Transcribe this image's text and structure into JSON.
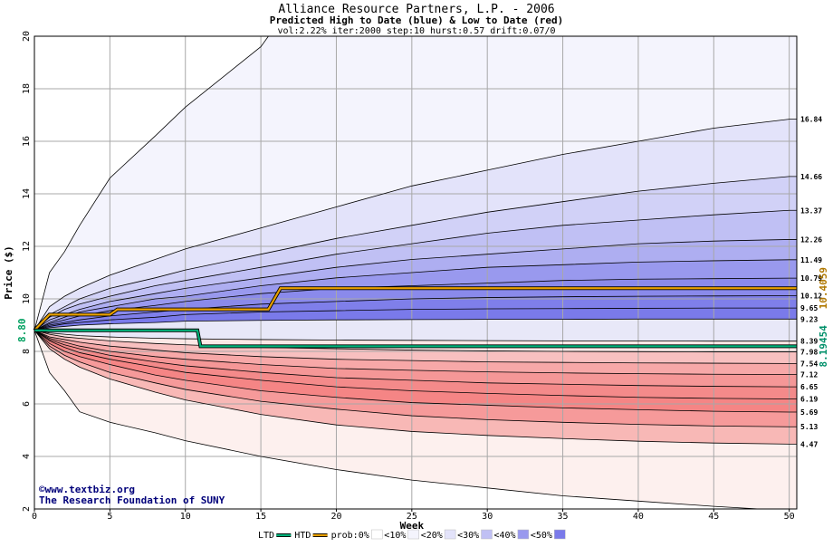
{
  "title": "Alliance Resource Partners, L.P. - 2006",
  "subtitle": "Predicted High to Date (blue) &  Low to Date (red)",
  "params": "vol:2.22% iter:2000 step:10 hurst:0.57 drift:0.07/0",
  "credit_url": "www.textbiz.org",
  "credit_org": "The Research Foundation of SUNY",
  "copyright_symbol": "©",
  "chart_data": {
    "type": "area",
    "xlabel": "Week",
    "ylabel": "Price ($)",
    "xlim": [
      0,
      50.5
    ],
    "ylim": [
      2,
      20
    ],
    "xticks": [
      0,
      5,
      10,
      15,
      20,
      25,
      30,
      35,
      40,
      45,
      50
    ],
    "yticks": [
      2,
      4,
      6,
      8,
      10,
      12,
      14,
      16,
      18,
      20
    ],
    "grid": true,
    "start_price": 8.8,
    "start_label": "8.80",
    "x": [
      0,
      1,
      2,
      3,
      5,
      8,
      10,
      15,
      20,
      25,
      30,
      35,
      40,
      45,
      50
    ],
    "upper_curves": [
      {
        "label": "16.84",
        "values": [
          8.8,
          9.7,
          10.1,
          10.4,
          10.9,
          11.5,
          11.9,
          12.7,
          13.5,
          14.3,
          14.9,
          15.5,
          16.0,
          16.5,
          16.84
        ]
      },
      {
        "label": "14.66",
        "values": [
          8.8,
          9.4,
          9.7,
          10.0,
          10.4,
          10.8,
          11.1,
          11.7,
          12.3,
          12.8,
          13.3,
          13.7,
          14.1,
          14.4,
          14.66
        ]
      },
      {
        "label": "13.37",
        "values": [
          8.8,
          9.3,
          9.6,
          9.8,
          10.1,
          10.5,
          10.7,
          11.2,
          11.7,
          12.1,
          12.5,
          12.8,
          13.0,
          13.2,
          13.37
        ]
      },
      {
        "label": "12.26",
        "values": [
          8.8,
          9.2,
          9.4,
          9.6,
          9.9,
          10.2,
          10.4,
          10.8,
          11.2,
          11.5,
          11.7,
          11.9,
          12.1,
          12.2,
          12.26
        ]
      },
      {
        "label": "11.49",
        "values": [
          8.8,
          9.1,
          9.3,
          9.5,
          9.7,
          10.0,
          10.1,
          10.5,
          10.8,
          11.0,
          11.2,
          11.3,
          11.4,
          11.45,
          11.49
        ]
      },
      {
        "label": "10.79",
        "values": [
          8.8,
          9.05,
          9.2,
          9.35,
          9.55,
          9.75,
          9.9,
          10.2,
          10.4,
          10.5,
          10.6,
          10.7,
          10.75,
          10.77,
          10.79
        ]
      },
      {
        "label": "10.12",
        "values": [
          8.8,
          9.0,
          9.1,
          9.2,
          9.35,
          9.5,
          9.6,
          9.8,
          9.9,
          10.0,
          10.05,
          10.08,
          10.1,
          10.11,
          10.12
        ]
      },
      {
        "label": "9.65",
        "values": [
          8.8,
          8.95,
          9.05,
          9.1,
          9.2,
          9.3,
          9.4,
          9.5,
          9.55,
          9.6,
          9.62,
          9.63,
          9.64,
          9.65,
          9.65
        ]
      },
      {
        "label": "9.23",
        "values": [
          8.8,
          8.9,
          8.95,
          9.0,
          9.05,
          9.1,
          9.15,
          9.18,
          9.2,
          9.21,
          9.22,
          9.22,
          9.23,
          9.23,
          9.23
        ]
      }
    ],
    "lower_curves": [
      {
        "label": "8.39",
        "values": [
          8.8,
          8.7,
          8.65,
          8.6,
          8.55,
          8.5,
          8.48,
          8.45,
          8.43,
          8.42,
          8.41,
          8.4,
          8.4,
          8.39,
          8.39
        ]
      },
      {
        "label": "7.98",
        "values": [
          8.8,
          8.65,
          8.55,
          8.5,
          8.4,
          8.3,
          8.25,
          8.15,
          8.1,
          8.05,
          8.02,
          8.0,
          7.99,
          7.98,
          7.98
        ]
      },
      {
        "label": "7.54",
        "values": [
          8.8,
          8.55,
          8.45,
          8.35,
          8.2,
          8.05,
          7.95,
          7.8,
          7.7,
          7.65,
          7.6,
          7.58,
          7.56,
          7.55,
          7.54
        ]
      },
      {
        "label": "7.12",
        "values": [
          8.8,
          8.5,
          8.35,
          8.2,
          8.0,
          7.8,
          7.7,
          7.5,
          7.35,
          7.28,
          7.22,
          7.18,
          7.15,
          7.13,
          7.12
        ]
      },
      {
        "label": "6.65",
        "values": [
          8.8,
          8.45,
          8.25,
          8.1,
          7.85,
          7.6,
          7.45,
          7.2,
          7.0,
          6.9,
          6.8,
          6.75,
          6.7,
          6.67,
          6.65
        ]
      },
      {
        "label": "6.19",
        "values": [
          8.8,
          8.4,
          8.15,
          7.95,
          7.7,
          7.4,
          7.2,
          6.9,
          6.65,
          6.5,
          6.4,
          6.32,
          6.25,
          6.21,
          6.19
        ]
      },
      {
        "label": "5.69",
        "values": [
          8.8,
          8.3,
          8.0,
          7.8,
          7.5,
          7.1,
          6.9,
          6.5,
          6.25,
          6.05,
          5.95,
          5.85,
          5.78,
          5.72,
          5.69
        ]
      },
      {
        "label": "5.13",
        "values": [
          8.8,
          8.2,
          7.85,
          7.6,
          7.2,
          6.8,
          6.55,
          6.1,
          5.8,
          5.55,
          5.4,
          5.3,
          5.22,
          5.16,
          5.13
        ]
      },
      {
        "label": "4.47",
        "values": [
          8.8,
          8.1,
          7.7,
          7.4,
          6.95,
          6.45,
          6.15,
          5.6,
          5.2,
          4.95,
          4.8,
          4.68,
          4.58,
          4.51,
          4.47
        ]
      }
    ],
    "outer_upper": {
      "x": [
        0,
        1,
        2,
        3,
        5,
        8,
        10,
        15,
        15.5,
        20,
        50.5
      ],
      "values": [
        8.8,
        11.0,
        11.8,
        12.8,
        14.6,
        16.2,
        17.3,
        19.6,
        20,
        20,
        20
      ]
    },
    "outer_lower": {
      "x": [
        0,
        1,
        2,
        3,
        5,
        8,
        10,
        15,
        20,
        25,
        30,
        35,
        40,
        45,
        48,
        50.5
      ],
      "values": [
        8.8,
        7.2,
        6.5,
        5.7,
        5.3,
        4.9,
        4.6,
        4.0,
        3.5,
        3.1,
        2.8,
        2.5,
        2.3,
        2.1,
        2.0,
        2.0
      ]
    },
    "htd_line": {
      "name": "HTD",
      "color": "#e8a000",
      "x": [
        0,
        1,
        5,
        5.5,
        15.5,
        16.3,
        50.5
      ],
      "values": [
        8.8,
        9.4,
        9.4,
        9.6,
        9.6,
        10.4059,
        10.4059
      ],
      "end_label": "10.4059"
    },
    "ltd_line": {
      "name": "LTD",
      "color": "#00b27a",
      "x": [
        0,
        10.8,
        11,
        50.5
      ],
      "values": [
        8.8,
        8.8,
        8.19454,
        8.19454
      ],
      "end_label": "8.19454"
    },
    "colors": {
      "outer": [
        "#f4f4fd",
        "#fdf0ee"
      ],
      "upper_bands": [
        "#e3e3fa",
        "#d1d1f7",
        "#c0c0f4",
        "#aeaef1",
        "#9999ee",
        "#8a8aeb",
        "#7f7fea",
        "#7a7aea",
        "#e8e8f8"
      ],
      "lower_bands": [
        "#fce8e6",
        "#f8c0c0",
        "#f7a8a8",
        "#f59797",
        "#f48a8a",
        "#f58585",
        "#f69a9a",
        "#f8b8b6",
        "#fcd8d6"
      ]
    },
    "legend": [
      {
        "label": "LTD",
        "kind": "line",
        "color": "#00b27a"
      },
      {
        "label": "HTD",
        "kind": "line",
        "color": "#e8a000"
      },
      {
        "label": "prob:0%",
        "kind": "swatch",
        "color": "#ffffff"
      },
      {
        "label": "<10%",
        "kind": "swatch",
        "color": "#f4f4fd"
      },
      {
        "label": "<20%",
        "kind": "swatch",
        "color": "#e3e3fa"
      },
      {
        "label": "<30%",
        "kind": "swatch",
        "color": "#c0c0f4"
      },
      {
        "label": "<40%",
        "kind": "swatch",
        "color": "#9999ee"
      },
      {
        "label": "<50%",
        "kind": "swatch",
        "color": "#7a7aea"
      }
    ]
  }
}
